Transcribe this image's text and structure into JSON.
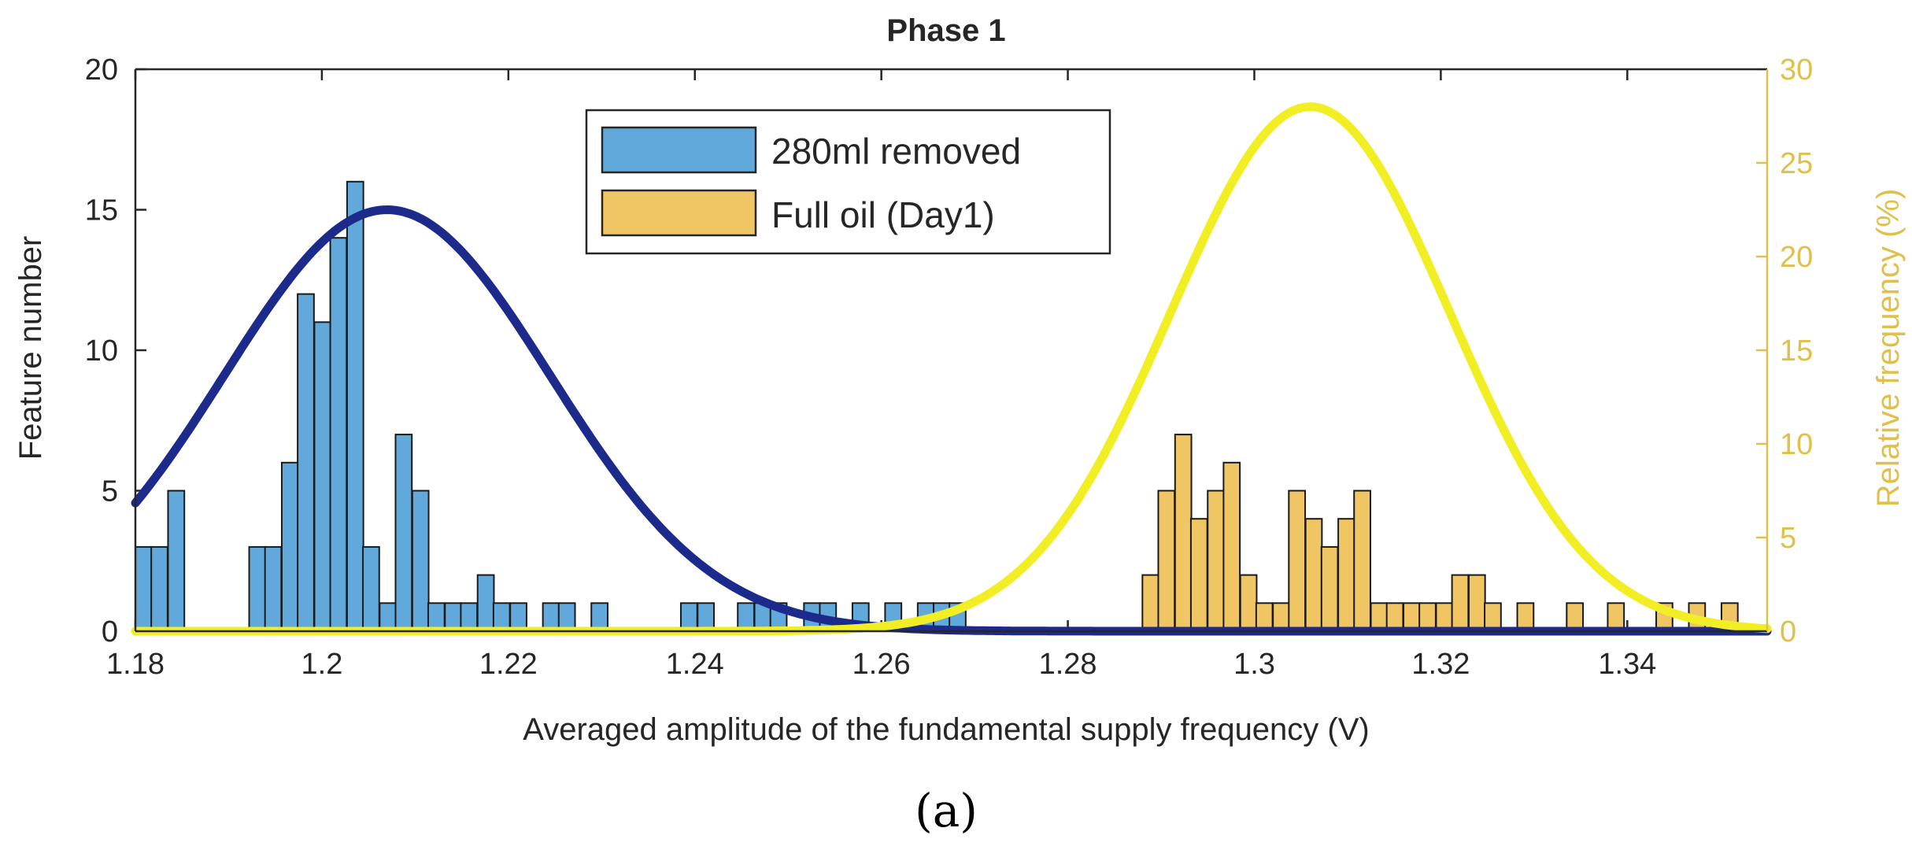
{
  "chart_data": {
    "type": "bar",
    "title": "Phase 1",
    "xlabel": "Averaged amplitude of the fundamental supply frequency (V)",
    "ylabel": "Feature number",
    "ylabel_right": "Relative frequency (%)",
    "caption": "(a)",
    "xlim": [
      1.18,
      1.355
    ],
    "ylim": [
      0,
      20
    ],
    "ylim_right": [
      0,
      30
    ],
    "bin_width": 0.00175,
    "x_ticks": [
      1.18,
      1.2,
      1.22,
      1.24,
      1.26,
      1.28,
      1.3,
      1.32,
      1.34
    ],
    "x_tick_labels": [
      "1.18",
      "1.2",
      "1.22",
      "1.24",
      "1.26",
      "1.28",
      "1.3",
      "1.32",
      "1.34"
    ],
    "y_ticks": [
      0,
      5,
      10,
      15,
      20
    ],
    "y_tick_labels": [
      "0",
      "5",
      "10",
      "15",
      "20"
    ],
    "y_right_ticks": [
      0,
      5,
      10,
      15,
      20,
      25,
      30
    ],
    "y_right_tick_labels": [
      "0",
      "5",
      "10",
      "15",
      "20",
      "25",
      "30"
    ],
    "legend": {
      "position": "top-center",
      "entries": [
        {
          "label": "280ml removed",
          "color": "#62a9db"
        },
        {
          "label": "Full oil (Day1)",
          "color": "#f0c665"
        }
      ]
    },
    "series": [
      {
        "name": "280ml removed",
        "color": "#62a9db",
        "bin_starts": [
          1.18,
          1.1817,
          1.1835,
          1.1922,
          1.1939,
          1.1957,
          1.1974,
          1.1992,
          1.2009,
          1.2027,
          1.2044,
          1.2062,
          1.2079,
          1.2097,
          1.2114,
          1.2132,
          1.2149,
          1.2167,
          1.2184,
          1.2202,
          1.2237,
          1.2254,
          1.2289,
          1.2385,
          1.2403,
          1.2446,
          1.2464,
          1.2481,
          1.2517,
          1.2534,
          1.2569,
          1.2604,
          1.2639,
          1.2656,
          1.2673
        ],
        "values": [
          3,
          3,
          5,
          3,
          3,
          6,
          12,
          11,
          14,
          16,
          3,
          1,
          7,
          5,
          1,
          1,
          1,
          2,
          1,
          1,
          1,
          1,
          1,
          1,
          1,
          1,
          1,
          1,
          1,
          1,
          1,
          1,
          1,
          1,
          1
        ]
      },
      {
        "name": "Full oil (Day1)",
        "color": "#f0c665",
        "bin_starts": [
          1.288,
          1.2897,
          1.2915,
          1.2932,
          1.295,
          1.2967,
          1.2985,
          1.3002,
          1.302,
          1.3037,
          1.3055,
          1.3072,
          1.309,
          1.3107,
          1.3125,
          1.3142,
          1.316,
          1.3177,
          1.3195,
          1.3212,
          1.323,
          1.3247,
          1.3282,
          1.3335,
          1.3379,
          1.3431,
          1.3466,
          1.3501
        ],
        "values": [
          2,
          5,
          7,
          4,
          5,
          6,
          2,
          1,
          1,
          5,
          4,
          3,
          4,
          5,
          1,
          1,
          1,
          1,
          1,
          2,
          2,
          1,
          1,
          1,
          1,
          1,
          1,
          1
        ]
      }
    ],
    "fit_curves": [
      {
        "name": "280ml removed fit",
        "color": "#1c2a8c",
        "axis": "right",
        "mean": 1.207,
        "std": 0.0175,
        "peak": 22.5
      },
      {
        "name": "Full oil (Day1) fit",
        "color": "#f2ee24",
        "axis": "right",
        "mean": 1.306,
        "std": 0.015,
        "peak": 28
      }
    ]
  }
}
